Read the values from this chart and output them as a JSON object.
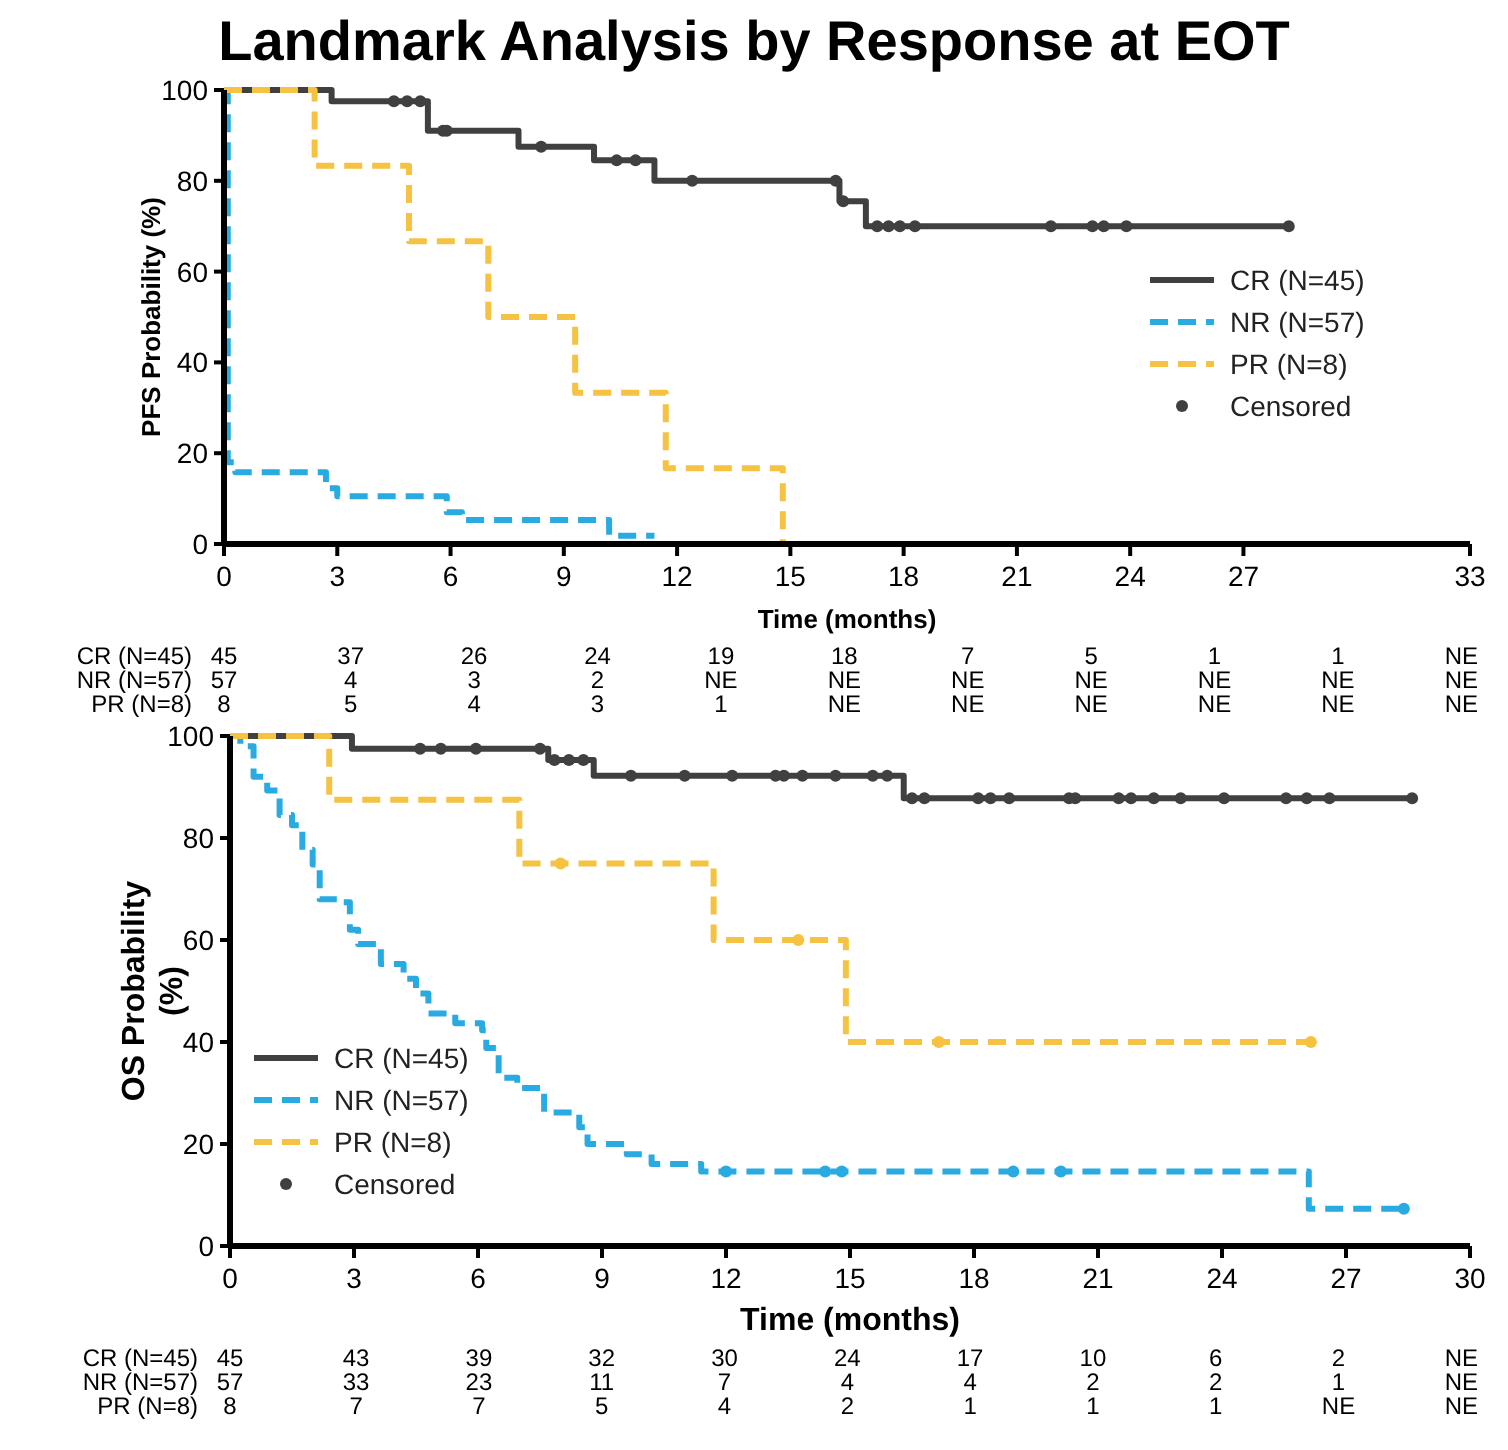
{
  "chart_data": [
    {
      "type": "step",
      "title": "Landmark Analysis by Response at EOT",
      "xlabel": "Time (months)",
      "ylabel": "PFS Probability (%)",
      "xlim": [
        0,
        33
      ],
      "ylim": [
        0,
        100
      ],
      "xticks": [
        0,
        3,
        6,
        9,
        12,
        15,
        18,
        21,
        24,
        27,
        33
      ],
      "yticks": [
        0,
        20,
        40,
        60,
        80,
        100
      ],
      "grid": false,
      "legend": "right",
      "series": [
        {
          "name": "CR  (N=45)",
          "color": "#404040",
          "line_style": "solid",
          "x": [
            0,
            2.85,
            5.4,
            7.8,
            9.8,
            11.4,
            16.3,
            17.0,
            28.3
          ],
          "values": [
            100,
            97.5,
            91,
            87.5,
            84.5,
            80,
            75.5,
            70,
            70
          ]
        },
        {
          "name": "NR  (N=57)",
          "color": "#29abe2",
          "line_style": "dashed",
          "x": [
            0,
            0.1,
            0.3,
            2.7,
            3.0,
            5.9,
            6.3,
            10.2,
            11.4
          ],
          "values": [
            100,
            18,
            15.8,
            12.3,
            10.5,
            7,
            5.3,
            1.8,
            1.8
          ]
        },
        {
          "name": "PR (N=8)",
          "color": "#f5c242",
          "line_style": "dashed",
          "x": [
            0,
            2.4,
            4.9,
            7.0,
            9.3,
            11.7,
            14.8
          ],
          "values": [
            100,
            83.3,
            66.7,
            50,
            33.3,
            16.7,
            0
          ]
        },
        {
          "name": "Censored",
          "type": "scatter",
          "color": "#404040",
          "marker": "circle",
          "x": [
            4.5,
            4.85,
            5.2,
            5.8,
            5.9,
            8.4,
            10.4,
            10.9,
            12.4,
            16.2,
            16.4,
            17.3,
            17.6,
            17.9,
            18.3,
            21.9,
            23.0,
            23.3,
            23.9,
            28.2
          ],
          "values": [
            97.5,
            97.5,
            97.5,
            91,
            91,
            87.5,
            84.5,
            84.5,
            80,
            80,
            75.5,
            70,
            70,
            70,
            70,
            70,
            70,
            70,
            70,
            70
          ]
        }
      ],
      "annotations": [
        "CR (N=45)",
        "45 37 26 24 19 18 7 5 1 1 NE",
        "NR (N=57)",
        "57 4 3 2 NE NE NE NE NE NE NE",
        "PR (N=8)",
        "8 5 4 3 1 NE NE NE NE NE NE"
      ]
    },
    {
      "type": "step",
      "xlabel": "Time (months)",
      "ylabel": "OS Probability (%)",
      "xlim": [
        0,
        30
      ],
      "ylim": [
        0,
        100
      ],
      "xticks": [
        0,
        3,
        6,
        9,
        12,
        15,
        18,
        21,
        24,
        27,
        30
      ],
      "yticks": [
        0,
        20,
        40,
        60,
        80,
        100
      ],
      "grid": false,
      "legend": "bottom left",
      "series": [
        {
          "name": "CR  (N=45)",
          "color": "#404040",
          "line_style": "solid",
          "x": [
            0,
            2.95,
            7.7,
            8.8,
            16.3,
            28.6
          ],
          "values": [
            100,
            97.5,
            95.3,
            92.2,
            87.8,
            87.8
          ]
        },
        {
          "name": "NR  (N=57)",
          "color": "#29abe2",
          "line_style": "dashed",
          "x": [
            0,
            0.25,
            0.57,
            0.9,
            1.2,
            1.5,
            1.75,
            2.0,
            2.17,
            2.7,
            2.9,
            3.1,
            3.65,
            4.2,
            4.5,
            4.8,
            5.45,
            6.1,
            6.2,
            6.5,
            6.95,
            7.6,
            8.45,
            8.65,
            9.6,
            10.2,
            11.4,
            26.1,
            28.4
          ],
          "values": [
            100,
            98,
            92,
            89.3,
            84.5,
            82.5,
            77.7,
            74.8,
            68,
            67.4,
            62,
            59.2,
            55.3,
            52.4,
            49.5,
            45.6,
            43.7,
            42.3,
            38.8,
            33,
            31,
            26.2,
            23.3,
            20,
            18,
            16.1,
            14.6,
            7.3,
            7.3
          ]
        },
        {
          "name": "PR (N=8)",
          "color": "#f5c242",
          "line_style": "dashed",
          "x": [
            0,
            2.4,
            7.0,
            11.7,
            14.9,
            26.15
          ],
          "values": [
            100,
            87.5,
            75,
            60,
            40,
            40
          ]
        },
        {
          "name": "Censored",
          "type": "scatter",
          "color": "#404040",
          "marker": "circle",
          "x": [
            4.6,
            5.1,
            5.95,
            7.5,
            7.85,
            8.2,
            8.55,
            9.7,
            11.0,
            12.15,
            13.2,
            13.4,
            13.85,
            14.65,
            15.55,
            15.9,
            16.5,
            16.8,
            18.1,
            18.4,
            18.85,
            20.3,
            20.45,
            21.5,
            21.8,
            22.35,
            23.0,
            24.05,
            25.55,
            26.05,
            26.6,
            28.6
          ],
          "values": [
            97.5,
            97.5,
            97.5,
            97.5,
            95.3,
            95.3,
            95.3,
            92.2,
            92.2,
            92.2,
            92.2,
            92.2,
            92.2,
            92.2,
            92.2,
            92.2,
            87.8,
            87.8,
            87.8,
            87.8,
            87.8,
            87.8,
            87.8,
            87.8,
            87.8,
            87.8,
            87.8,
            87.8,
            87.8,
            87.8,
            87.8,
            87.8
          ]
        },
        {
          "type": "scatter",
          "color": "#29abe2",
          "marker": "circle",
          "x": [
            12.0,
            14.4,
            14.8,
            18.95,
            20.1,
            28.4
          ],
          "values": [
            14.6,
            14.6,
            14.6,
            14.6,
            14.6,
            7.3
          ]
        },
        {
          "type": "scatter",
          "color": "#f5c242",
          "marker": "circle",
          "x": [
            8.0,
            13.75,
            17.15,
            26.15
          ],
          "values": [
            75,
            60,
            40,
            40
          ]
        }
      ],
      "annotations": [
        "CR (N=45)",
        "45 43 39 32 30 24 17 10 6 2 NE",
        "NR (N=57)",
        "57 33 23 11 7 4 4 2 2 1 NE",
        "PR (N=8)",
        "8 7 7 5 4 2 1 1 1 NE NE"
      ]
    }
  ]
}
